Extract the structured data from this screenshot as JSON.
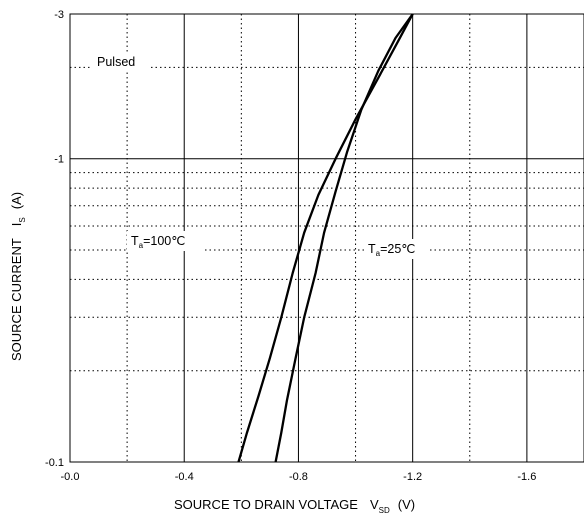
{
  "chart_data": {
    "type": "line",
    "xlabel": "SOURCE TO DRAIN VOLTAGE",
    "xlabel_symbol": "V",
    "xlabel_subscript": "SD",
    "xlabel_unit": "(V)",
    "ylabel": "SOURCE CURRENT",
    "ylabel_symbol": "I",
    "ylabel_subscript": "S",
    "ylabel_unit": "(A)",
    "xlim": [
      0.0,
      -1.8
    ],
    "ylim": [
      -0.1,
      -3
    ],
    "yscale": "log",
    "x_ticks": [
      "-0.0",
      "-0.4",
      "-0.8",
      "-1.2",
      "-1.6"
    ],
    "x_tick_values": [
      0.0,
      -0.4,
      -0.8,
      -1.2,
      -1.6
    ],
    "y_ticks": [
      "-0.1",
      "-1",
      "-3"
    ],
    "y_tick_values": [
      -0.1,
      -1,
      -3
    ],
    "grid": true,
    "annotations": {
      "pulsed": "Pulsed",
      "ta100_symbol": "T",
      "ta100_sub": "a",
      "ta100_value": "=100℃",
      "ta25_symbol": "T",
      "ta25_sub": "a",
      "ta25_value": "=25℃"
    },
    "series": [
      {
        "x": [
          -0.59,
          -0.62,
          -0.66,
          -0.7,
          -0.74,
          -0.78,
          -0.82,
          -0.87,
          -0.93,
          -1.0,
          -1.08,
          -1.15,
          -1.2
        ],
        "y": [
          -0.1,
          -0.125,
          -0.165,
          -0.22,
          -0.3,
          -0.42,
          -0.57,
          -0.76,
          -1.0,
          -1.35,
          -1.85,
          -2.45,
          -3.0
        ]
      },
      {
        "x": [
          -0.72,
          -0.74,
          -0.76,
          -0.79,
          -0.82,
          -0.86,
          -0.89,
          -0.93,
          -0.97,
          -1.02,
          -1.08,
          -1.14,
          -1.2
        ],
        "y": [
          -0.1,
          -0.125,
          -0.16,
          -0.22,
          -0.3,
          -0.42,
          -0.57,
          -0.78,
          -1.05,
          -1.45,
          -1.95,
          -2.5,
          -3.0
        ]
      }
    ]
  }
}
